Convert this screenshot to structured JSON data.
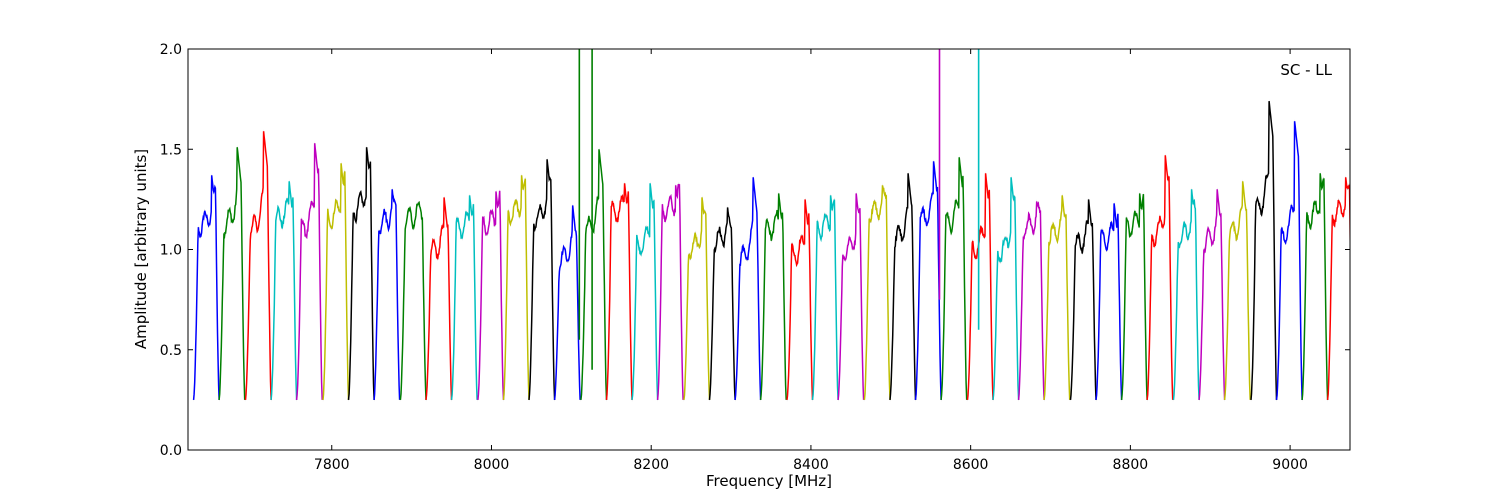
{
  "chart_data": {
    "type": "line",
    "title": "",
    "annotation": "SC - LL",
    "xlabel": "Frequency [MHz]",
    "ylabel": "Amplitude [arbitrary units]",
    "xlim": [
      7620,
      9075
    ],
    "ylim": [
      0.0,
      2.0
    ],
    "xticks": [
      7800,
      8000,
      8200,
      8400,
      8600,
      8800,
      9000
    ],
    "xtick_labels": [
      "7800",
      "8000",
      "8200",
      "8400",
      "8600",
      "8800",
      "9000"
    ],
    "yticks": [
      0.0,
      0.5,
      1.0,
      1.5,
      2.0
    ],
    "ytick_labels": [
      "0.0",
      "0.5",
      "1.0",
      "1.5",
      "2.0"
    ],
    "grid": false,
    "legend": "none",
    "band_color": "#bbbbbb",
    "channel_width_mhz": 32,
    "channel_colors": [
      "#0000ff",
      "#008000",
      "#ff0000",
      "#00bfbf",
      "#bf00bf",
      "#bfbf00",
      "#000000"
    ],
    "channel_centers": [
      7643,
      7675,
      7708,
      7740,
      7772,
      7805,
      7837,
      7869,
      7902,
      7934,
      7966,
      7999,
      8031,
      8063,
      8095,
      8128,
      8160,
      8192,
      8224,
      8257,
      8289,
      8321,
      8353,
      8386,
      8418,
      8450,
      8483,
      8515,
      8547,
      8579,
      8612,
      8644,
      8676,
      8708,
      8741,
      8773,
      8805,
      8837,
      8870,
      8902,
      8934,
      8967,
      8999,
      9031,
      9063
    ],
    "channel_peaks": [
      1.38,
      1.52,
      1.6,
      1.35,
      1.54,
      1.44,
      1.52,
      1.31,
      1.24,
      1.27,
      1.28,
      1.3,
      1.38,
      1.46,
      1.23,
      1.51,
      1.34,
      1.34,
      1.33,
      1.27,
      1.22,
      1.37,
      1.29,
      1.26,
      1.28,
      1.29,
      1.33,
      1.39,
      1.45,
      1.47,
      1.39,
      1.37,
      1.25,
      1.28,
      1.26,
      1.24,
      1.29,
      1.48,
      1.31,
      1.31,
      1.35,
      1.75,
      1.65,
      1.39,
      1.37
    ],
    "series": [
      {
        "x": [
          8110,
          8110
        ],
        "y": [
          0.55,
          2.0
        ],
        "color": "#008000"
      },
      {
        "x": [
          8126,
          8126
        ],
        "y": [
          0.4,
          2.0
        ],
        "color": "#008000"
      },
      {
        "x": [
          8561,
          8561
        ],
        "y": [
          0.75,
          2.0
        ],
        "color": "#bf00bf"
      },
      {
        "x": [
          8610,
          8610
        ],
        "y": [
          0.6,
          2.0
        ],
        "color": "#00bfbf"
      }
    ]
  }
}
